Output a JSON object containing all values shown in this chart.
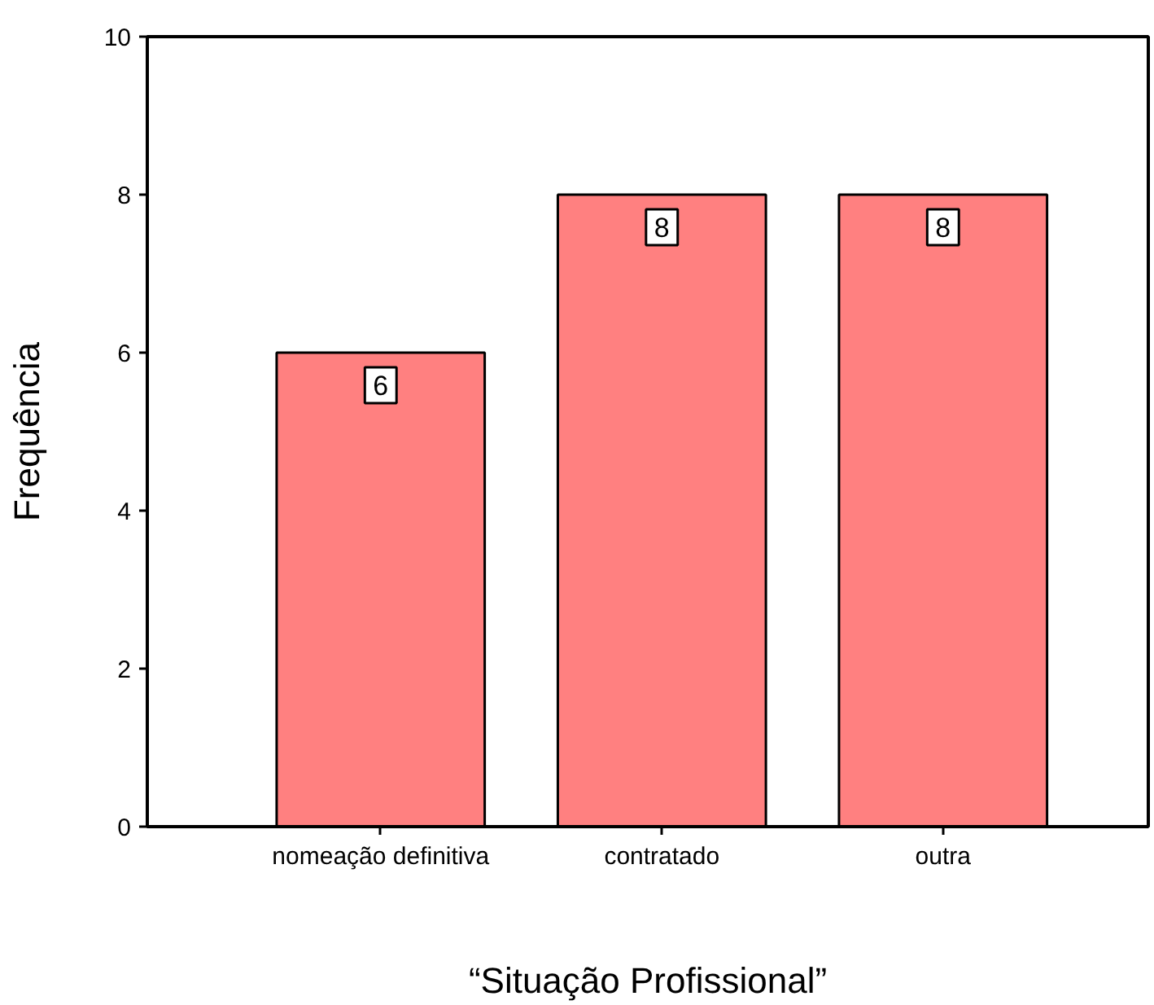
{
  "chart_data": {
    "type": "bar",
    "xlabel": "“Situação Profissional”",
    "ylabel": "Frequência",
    "categories": [
      "nomeação definitiva",
      "contratado",
      "outra"
    ],
    "values": [
      6,
      8,
      8
    ],
    "color": "#ff8080",
    "ylim": [
      0,
      10
    ],
    "yticks": [
      0,
      2,
      4,
      6,
      8,
      10
    ],
    "data_labels": true
  }
}
